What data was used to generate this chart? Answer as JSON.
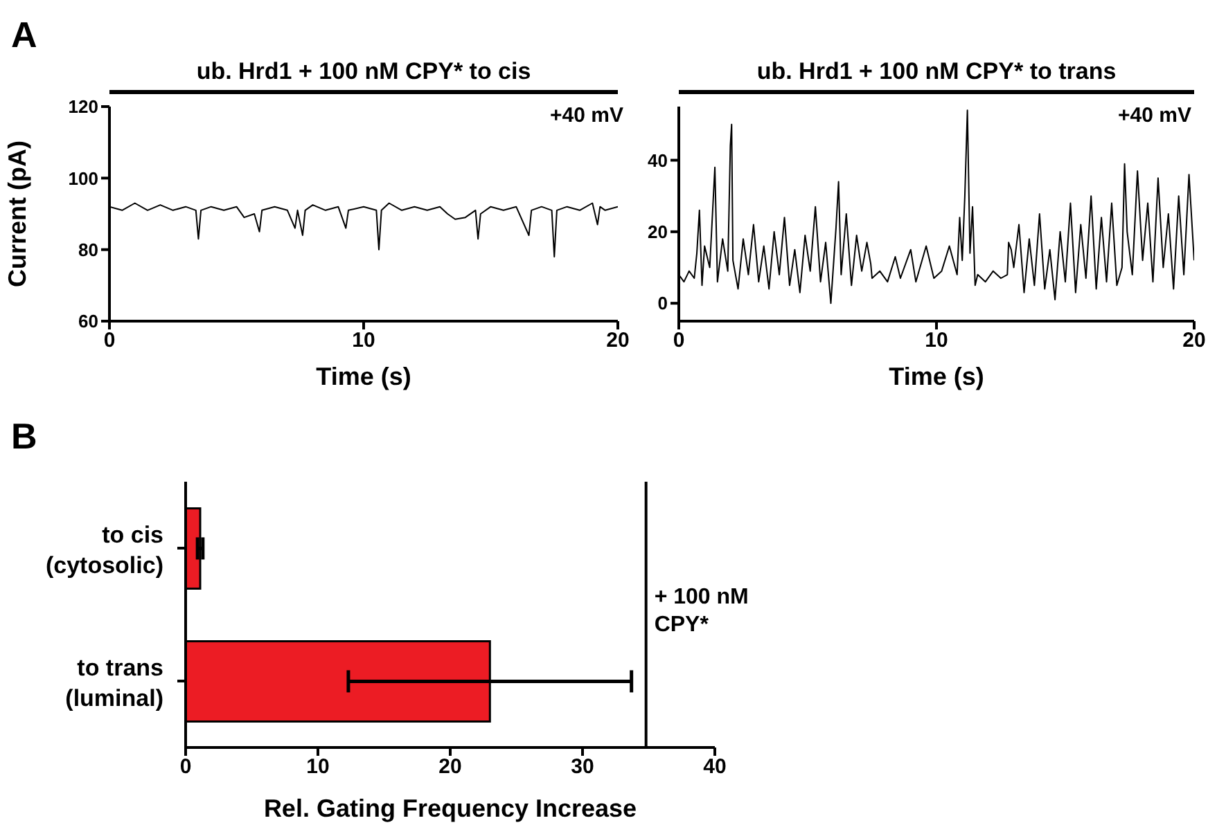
{
  "chart_data": [
    {
      "type": "line",
      "title": "ub. Hrd1 + 100 nM CPY* to cis",
      "xlabel": "Time (s)",
      "ylabel": "Current (pA)",
      "annotations": [
        "A",
        "+40 mV"
      ],
      "xlim": [
        0,
        20
      ],
      "xticks": [
        0,
        10,
        20
      ],
      "ylim": [
        60,
        120
      ],
      "yticks": [
        60,
        80,
        100,
        120
      ],
      "series": [
        {
          "color": "#000000",
          "x": [
            0,
            0.5,
            1,
            1.5,
            2,
            2.5,
            3,
            3.4,
            3.5,
            3.6,
            4,
            4.5,
            5,
            5.3,
            5.7,
            5.9,
            6,
            6.5,
            7,
            7.3,
            7.4,
            7.6,
            7.7,
            8,
            8.5,
            9,
            9.3,
            9.4,
            10,
            10.5,
            10.6,
            10.7,
            11,
            11.5,
            12,
            12.5,
            13,
            13.3,
            13.6,
            14,
            14.4,
            14.5,
            14.6,
            15,
            15.5,
            16,
            16.5,
            16.6,
            17,
            17.4,
            17.5,
            17.6,
            18,
            18.5,
            19,
            19.2,
            19.3,
            19.5,
            20
          ],
          "values": [
            92,
            91,
            93,
            91,
            92.5,
            91,
            92,
            91,
            83,
            91,
            92,
            91,
            92,
            89,
            90,
            85,
            91,
            92,
            91,
            86,
            91,
            84,
            91,
            92.5,
            91,
            92,
            86,
            91,
            92,
            91,
            80,
            91,
            93,
            91,
            92,
            91,
            92,
            90,
            88.5,
            89,
            91,
            83,
            90,
            92,
            91,
            92,
            84,
            91,
            92,
            91,
            78,
            91,
            92,
            91,
            93,
            87,
            92,
            91,
            92
          ]
        }
      ]
    },
    {
      "type": "line",
      "title": "ub. Hrd1 + 100 nM CPY* to trans",
      "xlabel": "Time (s)",
      "annotations": [
        "+40 mV"
      ],
      "xlim": [
        0,
        20
      ],
      "xticks": [
        0,
        10,
        20
      ],
      "ylim": [
        -5,
        55
      ],
      "yticks": [
        0,
        20,
        40
      ],
      "series": [
        {
          "color": "#000000",
          "x": [
            0,
            0.2,
            0.4,
            0.6,
            0.7,
            0.8,
            0.9,
            1.0,
            1.2,
            1.4,
            1.5,
            1.7,
            1.9,
            2.0,
            2.05,
            2.1,
            2.3,
            2.5,
            2.7,
            2.9,
            3.1,
            3.3,
            3.5,
            3.7,
            3.9,
            4.1,
            4.3,
            4.5,
            4.7,
            4.9,
            5.1,
            5.3,
            5.5,
            5.7,
            5.9,
            6.1,
            6.2,
            6.3,
            6.5,
            6.7,
            6.9,
            7.1,
            7.3,
            7.45,
            7.5,
            7.8,
            8.1,
            8.4,
            8.6,
            9.0,
            9.2,
            9.6,
            9.9,
            10.2,
            10.5,
            10.8,
            10.9,
            11.0,
            11.1,
            11.2,
            11.3,
            11.4,
            11.5,
            11.6,
            11.9,
            12.2,
            12.5,
            12.75,
            12.8,
            12.9,
            13.0,
            13.2,
            13.4,
            13.6,
            13.8,
            14.0,
            14.2,
            14.4,
            14.6,
            14.8,
            15.0,
            15.2,
            15.4,
            15.6,
            15.8,
            16.0,
            16.2,
            16.4,
            16.6,
            16.8,
            17.0,
            17.2,
            17.3,
            17.4,
            17.6,
            17.8,
            18.0,
            18.2,
            18.4,
            18.6,
            18.8,
            19.0,
            19.2,
            19.4,
            19.6,
            19.8,
            20.0
          ],
          "values": [
            8,
            6,
            9,
            7,
            14,
            26,
            5,
            16,
            10,
            38,
            6,
            18,
            9,
            44,
            50,
            12,
            4,
            18,
            8,
            22,
            6,
            16,
            4,
            20,
            8,
            24,
            5,
            15,
            3,
            19,
            9,
            27,
            6,
            17,
            0,
            21,
            34,
            8,
            25,
            5,
            19,
            9,
            17,
            11,
            7,
            9,
            6,
            13,
            7,
            15,
            6,
            16,
            7,
            9,
            16,
            8,
            24,
            12,
            30,
            54,
            14,
            27,
            5,
            8,
            6,
            9,
            7,
            8,
            17,
            15,
            10,
            22,
            3,
            18,
            5,
            25,
            4,
            15,
            1,
            20,
            6,
            28,
            3,
            22,
            7,
            30,
            4,
            24,
            6,
            28,
            5,
            10,
            39,
            20,
            8,
            37,
            12,
            28,
            6,
            35,
            10,
            25,
            4,
            30,
            8,
            36,
            12
          ]
        }
      ]
    },
    {
      "type": "bar",
      "orientation": "horizontal",
      "xlabel": "Rel. Gating Frequency Increase",
      "annotations": [
        "B"
      ],
      "ref_lines": [
        {
          "axis": "x",
          "value": 34.8,
          "label": "+ 100 nM CPY*"
        }
      ],
      "categories": [
        "to cis (cytosolic)",
        "to trans (luminal)"
      ],
      "xlim": [
        0,
        40
      ],
      "xticks": [
        0,
        10,
        20,
        30,
        40
      ],
      "series": [
        {
          "color": "#ec1c24",
          "values": [
            1.1,
            23
          ],
          "errors": [
            0.2,
            10.7
          ]
        }
      ]
    }
  ]
}
